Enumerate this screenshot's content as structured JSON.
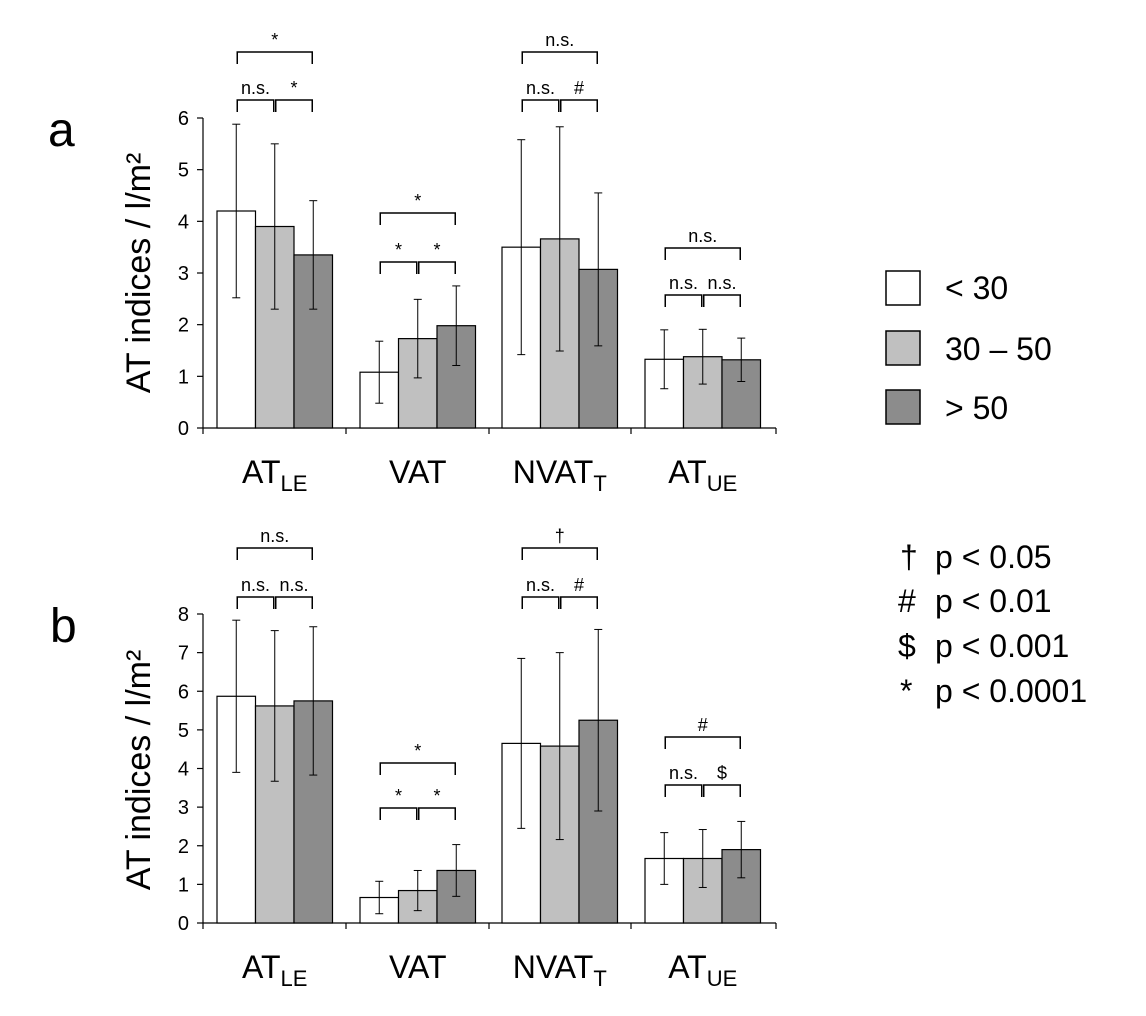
{
  "colors": {
    "group_lt30": "#ffffff",
    "group_30_50": "#c0c0c0",
    "group_gt50": "#8c8c8c",
    "stroke": "#000000"
  },
  "legend": {
    "groups": [
      {
        "label": "< 30",
        "color": "#ffffff"
      },
      {
        "label": "30 – 50",
        "color": "#c0c0c0"
      },
      {
        "label": "> 50",
        "color": "#8c8c8c"
      }
    ],
    "significance": [
      {
        "symbol": "†",
        "text": "p < 0.05"
      },
      {
        "symbol": "#",
        "text": "p < 0.01"
      },
      {
        "symbol": "$",
        "text": "p < 0.001"
      },
      {
        "symbol": "*",
        "text": "p < 0.0001"
      }
    ]
  },
  "chart_data": [
    {
      "panel": "a",
      "type": "bar",
      "ylabel": "AT indices / l/m²",
      "ylim": [
        0,
        6
      ],
      "yticks": [
        0,
        1,
        2,
        3,
        4,
        5,
        6
      ],
      "categories": [
        {
          "main": "AT",
          "sub": "LE"
        },
        {
          "main": "VAT",
          "sub": ""
        },
        {
          "main": "NVAT",
          "sub": "T"
        },
        {
          "main": "AT",
          "sub": "UE"
        }
      ],
      "series": [
        {
          "name": "< 30",
          "values": [
            4.2,
            1.08,
            3.5,
            1.33
          ],
          "errors": [
            1.68,
            0.6,
            2.08,
            0.57
          ]
        },
        {
          "name": "30 – 50",
          "values": [
            3.9,
            1.73,
            3.66,
            1.38
          ],
          "errors": [
            1.6,
            0.76,
            2.17,
            0.53
          ]
        },
        {
          "name": "> 50",
          "values": [
            3.35,
            1.98,
            3.07,
            1.32
          ],
          "errors": [
            1.05,
            0.77,
            1.48,
            0.42
          ]
        }
      ],
      "annotations": [
        {
          "category": 0,
          "pairs": [
            "n.s.",
            "*"
          ],
          "overall": "*"
        },
        {
          "category": 1,
          "pairs": [
            "*",
            "*"
          ],
          "overall": "*"
        },
        {
          "category": 2,
          "pairs": [
            "n.s.",
            "#"
          ],
          "overall": "n.s."
        },
        {
          "category": 3,
          "pairs": [
            "n.s.",
            "n.s."
          ],
          "overall": "n.s."
        }
      ]
    },
    {
      "panel": "b",
      "type": "bar",
      "ylabel": "AT indices / l/m²",
      "ylim": [
        0,
        8
      ],
      "yticks": [
        0,
        1,
        2,
        3,
        4,
        5,
        6,
        7,
        8
      ],
      "categories": [
        {
          "main": "AT",
          "sub": "LE"
        },
        {
          "main": "VAT",
          "sub": ""
        },
        {
          "main": "NVAT",
          "sub": "T"
        },
        {
          "main": "AT",
          "sub": "UE"
        }
      ],
      "series": [
        {
          "name": "< 30",
          "values": [
            5.87,
            0.66,
            4.65,
            1.67
          ],
          "errors": [
            1.97,
            0.42,
            2.2,
            0.67
          ]
        },
        {
          "name": "30 – 50",
          "values": [
            5.62,
            0.84,
            4.58,
            1.67
          ],
          "errors": [
            1.95,
            0.52,
            2.42,
            0.75
          ]
        },
        {
          "name": "> 50",
          "values": [
            5.75,
            1.36,
            5.25,
            1.9
          ],
          "errors": [
            1.92,
            0.67,
            2.35,
            0.73
          ]
        }
      ],
      "annotations": [
        {
          "category": 0,
          "pairs": [
            "n.s.",
            "n.s."
          ],
          "overall": "n.s."
        },
        {
          "category": 1,
          "pairs": [
            "*",
            "*"
          ],
          "overall": "*"
        },
        {
          "category": 2,
          "pairs": [
            "n.s.",
            "#"
          ],
          "overall": "†"
        },
        {
          "category": 3,
          "pairs": [
            "n.s.",
            "$"
          ],
          "overall": "#"
        }
      ]
    }
  ]
}
